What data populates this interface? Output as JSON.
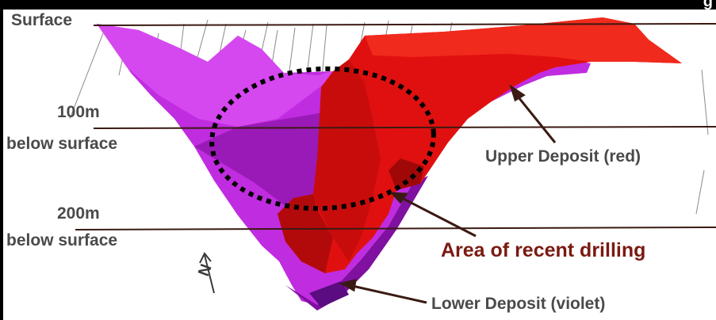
{
  "header": {
    "cut_letter": "g"
  },
  "depth_labels": {
    "surface": "Surface",
    "d100_value": "100m",
    "d100_text": "below surface",
    "d200_value": "200m",
    "d200_text": "below surface"
  },
  "callouts": {
    "upper": "Upper Deposit (red)",
    "lower": "Lower Deposit (violet)",
    "drilling": "Area of recent drilling"
  },
  "north_arrow": {
    "letter": "N"
  },
  "colors": {
    "upper_deposit": "#e01010",
    "lower_deposit": "#c02ce0",
    "depth_line": "#3a1a12",
    "drill_ellipse": "#000000",
    "drilling_label": "#7a1a12"
  }
}
